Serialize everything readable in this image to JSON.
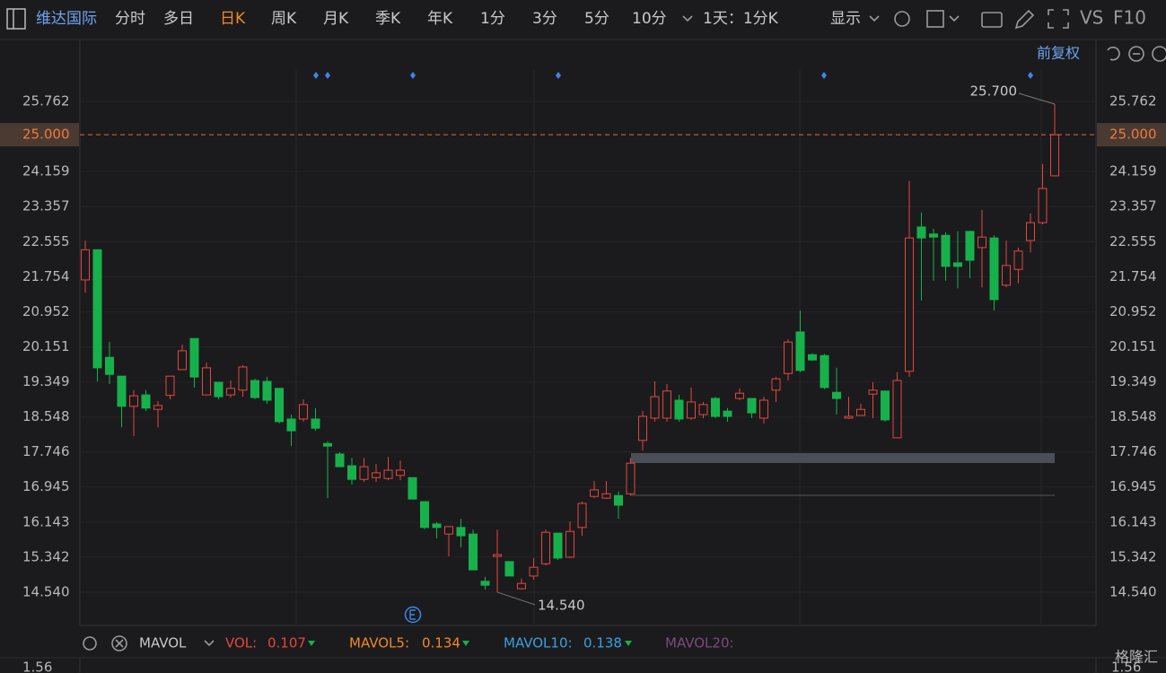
{
  "toolbar": {
    "stock": "维达国际",
    "periods": [
      "分时",
      "多日",
      "日K",
      "周K",
      "月K",
      "季K",
      "年K",
      "1分",
      "3分",
      "5分",
      "10分"
    ],
    "interval": "1天：1分K",
    "display": "显示",
    "compare": "VS",
    "f10": "F10",
    "adjust": "前复权"
  },
  "chart_data": {
    "type": "candlestick",
    "up_color": "#e5463f",
    "down_color": "#17b14c",
    "ylim": [
      13.78,
      26.48
    ],
    "yticks": [
      25.762,
      24.159,
      23.357,
      22.555,
      21.754,
      20.952,
      20.151,
      19.349,
      18.548,
      17.746,
      16.945,
      16.143,
      15.342,
      {
        "value": 14.54,
        "label": "14.540"
      }
    ],
    "last_price": {
      "value": 25,
      "label": "25.000"
    },
    "max_label": {
      "value": 25.7,
      "label": "25.700"
    },
    "min_label": {
      "value": 14.54,
      "label": "14.540"
    },
    "open": [
      21.68,
      22.37,
      19.91,
      19.48,
      18.79,
      19.05,
      18.72,
      19.04,
      19.63,
      20.34,
      19.05,
      19.34,
      19.05,
      19.16,
      19.38,
      19.36,
      19.2,
      18.5,
      18.5,
      18.5,
      17.94,
      17.7,
      17.43,
      17.12,
      17.16,
      17.14,
      17.21,
      17.16,
      16.61,
      16.1,
      15.87,
      16.02,
      15.87,
      14.79,
      15.36,
      15.24,
      14.62,
      14.91,
      15.19,
      15.89,
      15.34,
      16.02,
      16.73,
      16.69,
      16.75,
      16.79,
      18.01,
      18.52,
      18.52,
      18.93,
      18.52,
      18.6,
      18.97,
      18.68,
      18.97,
      18.97,
      18.52,
      19.16,
      19.54,
      20.49,
      19.97,
      19.95,
      19.11,
      18.52,
      18.58,
      19.07,
      19.14,
      18.07,
      19.59,
      22.89,
      22.73,
      22.7,
      22.07,
      22.79,
      22.42,
      22.64,
      21.56,
      21.92,
      22.58,
      22.99,
      24.06
    ],
    "high": [
      22.58,
      22.37,
      20.26,
      19.48,
      19.16,
      19.16,
      18.91,
      19.48,
      20.2,
      20.34,
      19.79,
      19.34,
      19.38,
      19.73,
      19.42,
      19.46,
      19.2,
      18.6,
      18.95,
      18.75,
      17.99,
      17.74,
      17.61,
      17.61,
      17.47,
      17.63,
      17.55,
      17.16,
      16.61,
      16.14,
      16.04,
      16.22,
      15.97,
      14.89,
      15.97,
      15.24,
      14.85,
      15.32,
      15.97,
      15.89,
      16.16,
      16.61,
      17.08,
      17.08,
      16.84,
      17.61,
      18.68,
      19.36,
      19.3,
      19.05,
      19.22,
      18.89,
      19.01,
      18.75,
      19.2,
      18.97,
      19.01,
      19.46,
      20.32,
      20.98,
      20.01,
      19.99,
      19.67,
      19.01,
      18.85,
      19.34,
      19.14,
      19.57,
      23.94,
      23.22,
      22.85,
      22.77,
      22.79,
      22.79,
      23.28,
      22.7,
      22.58,
      22.42,
      23.2,
      24.33,
      25.7
    ],
    "low": [
      21.39,
      19.36,
      19.3,
      18.31,
      18.11,
      18.68,
      18.31,
      18.95,
      19.63,
      19.22,
      19.05,
      18.95,
      18.99,
      19.01,
      18.95,
      18.85,
      18.4,
      17.88,
      18.44,
      18.23,
      16.69,
      17.41,
      17.0,
      17.06,
      17.06,
      17.1,
      17.1,
      16.67,
      15.98,
      15.77,
      15.36,
      15.56,
      15.05,
      14.6,
      14.54,
      14.91,
      14.6,
      14.83,
      15.15,
      15.28,
      15.32,
      15.83,
      16.69,
      16.67,
      16.22,
      16.75,
      17.78,
      18.44,
      18.44,
      18.44,
      18.48,
      18.52,
      18.52,
      18.44,
      18.93,
      18.52,
      18.4,
      18.89,
      19.38,
      19.57,
      19.83,
      19.18,
      18.6,
      18.5,
      18.58,
      18.52,
      18.44,
      18.07,
      19.46,
      21.21,
      21.66,
      21.66,
      21.49,
      21.72,
      21.51,
      20.98,
      21.51,
      21.6,
      22.31,
      22.95,
      24.06
    ],
    "close": [
      22.37,
      19.67,
      19.52,
      18.79,
      19.03,
      18.75,
      18.81,
      19.48,
      20.06,
      19.46,
      19.67,
      19.01,
      19.2,
      19.69,
      18.99,
      18.93,
      18.44,
      18.23,
      18.83,
      18.29,
      17.88,
      17.41,
      17.12,
      17.41,
      17.27,
      17.33,
      17.33,
      16.67,
      16.02,
      16.02,
      16.04,
      15.83,
      15.05,
      14.7,
      15.4,
      14.91,
      14.74,
      15.11,
      15.91,
      15.32,
      15.93,
      16.57,
      16.88,
      16.79,
      16.53,
      17.49,
      18.56,
      19.01,
      19.14,
      18.5,
      18.89,
      18.83,
      18.56,
      18.56,
      19.09,
      18.64,
      18.93,
      19.42,
      20.26,
      19.61,
      19.85,
      19.22,
      18.97,
      18.56,
      18.72,
      19.16,
      18.48,
      19.38,
      22.64,
      22.64,
      22.66,
      21.99,
      21.99,
      22.13,
      22.66,
      21.23,
      22.01,
      22.34,
      22.99,
      23.77,
      25
    ]
  },
  "indicator": {
    "name": "MAVOL",
    "vol_label": "VOL:",
    "vol": 0.107,
    "ma5_label": "MAVOL5:",
    "ma5": 0.134,
    "ma10_label": "MAVOL10:",
    "ma10": 0.138,
    "ma20_label": "MAVOL20:",
    "axis_value": 1.56
  },
  "watermark": "格隆汇"
}
